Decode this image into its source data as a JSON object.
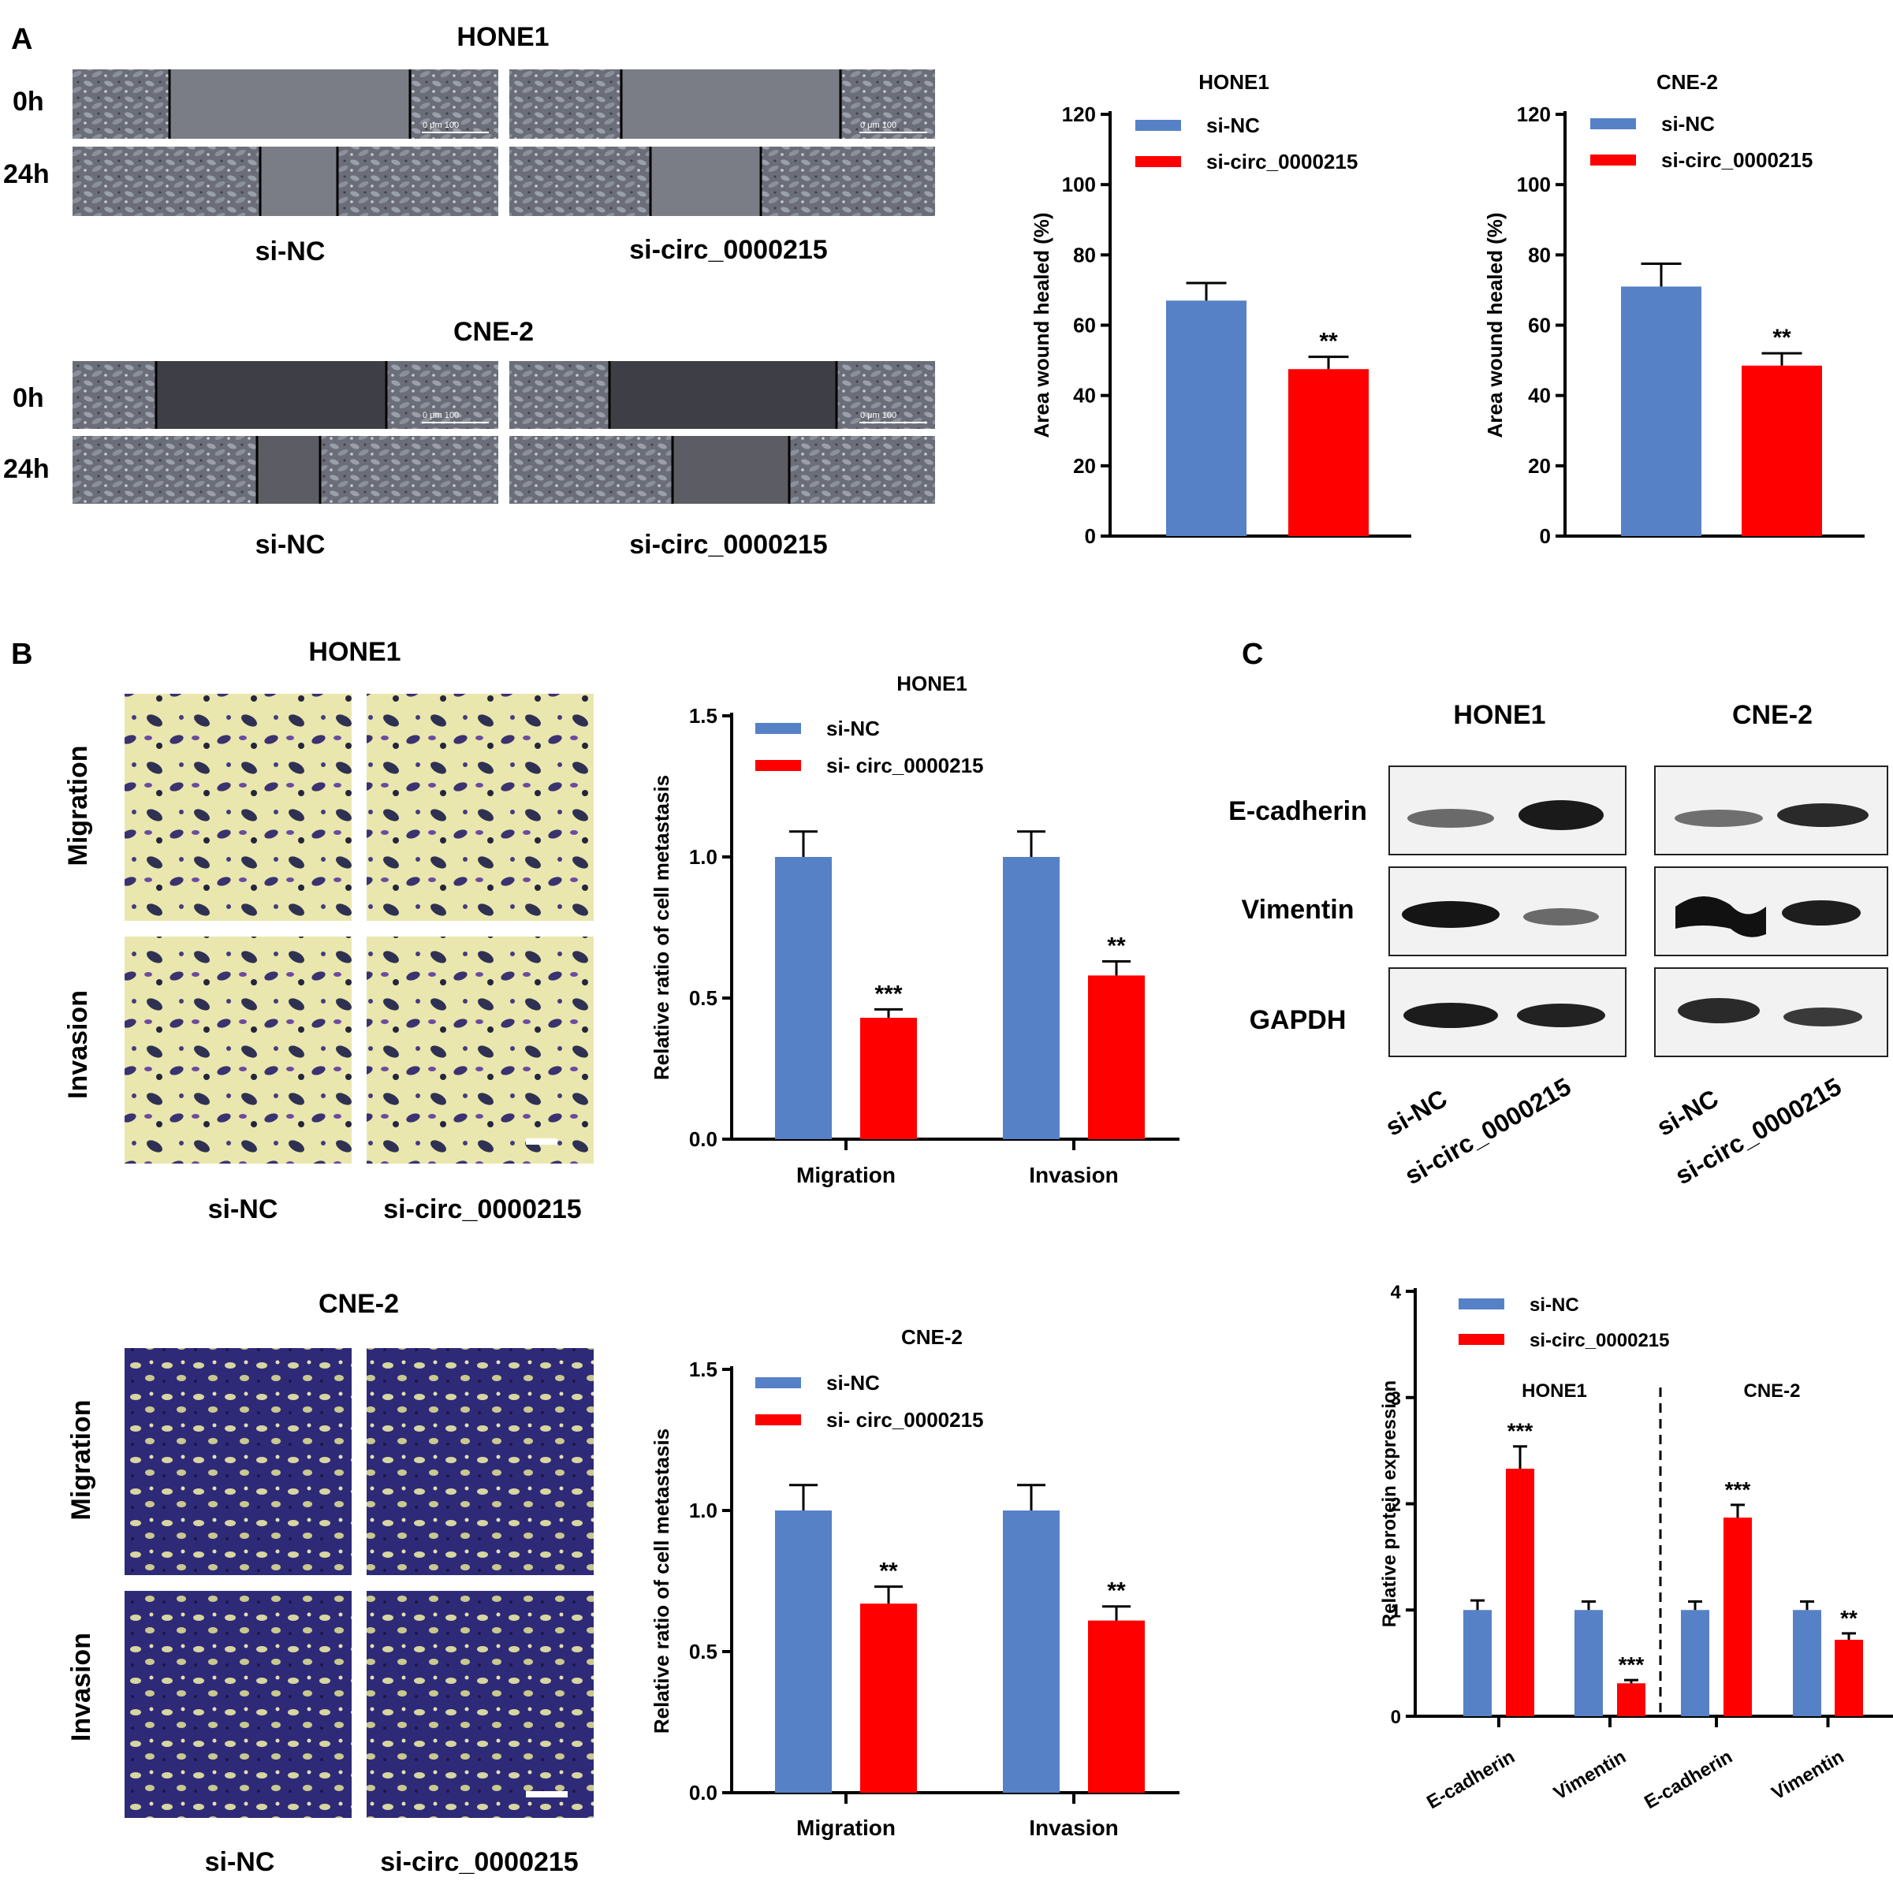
{
  "panel_labels": [
    "A",
    "B",
    "C"
  ],
  "panelA": {
    "hone1_title": "HONE1",
    "cne2_title": "CNE-2",
    "time_0h": "0h",
    "time_24h": "24h",
    "group_nc": "si-NC",
    "group_circ": "si-circ_0000215",
    "scale_label": "0  μm  100"
  },
  "panelB": {
    "hone1_title": "HONE1",
    "cne2_title": "CNE-2",
    "row_migration": "Migration",
    "row_invasion": "Invasion",
    "group_nc": "si-NC",
    "group_circ": "si-circ_0000215"
  },
  "panelC": {
    "hone1_title": "HONE1",
    "cne2_title": "CNE-2",
    "proteins": [
      "E-cadherin",
      "Vimentin",
      "GAPDH"
    ],
    "lane_nc": "si-NC",
    "lane_circ": "si-circ_0000215"
  },
  "colors": {
    "si_nc": "#5681C6",
    "si_circ": "#FF0000"
  },
  "chart_data": [
    {
      "type": "bar",
      "title": "HONE1",
      "ylabel": "Area wound healed (%)",
      "ylim": [
        0,
        120
      ],
      "yticks": [
        0,
        20,
        40,
        60,
        80,
        100,
        120
      ],
      "legend_placement": "top-left",
      "series": [
        {
          "name": "si-NC",
          "values": [
            67
          ],
          "errors": [
            5
          ],
          "sig": [
            ""
          ]
        },
        {
          "name": "si-circ_0000215",
          "values": [
            47.5
          ],
          "errors": [
            3.5
          ],
          "sig": [
            "**"
          ]
        }
      ]
    },
    {
      "type": "bar",
      "title": "CNE-2",
      "ylabel": "Area wound healed (%)",
      "ylim": [
        0,
        120
      ],
      "yticks": [
        0,
        20,
        40,
        60,
        80,
        100,
        120
      ],
      "legend_placement": "top-left",
      "series": [
        {
          "name": "si-NC",
          "values": [
            71
          ],
          "errors": [
            6.5
          ],
          "sig": [
            ""
          ]
        },
        {
          "name": "si-circ_0000215",
          "values": [
            48.5
          ],
          "errors": [
            3.5
          ],
          "sig": [
            "**"
          ]
        }
      ]
    },
    {
      "type": "bar",
      "title": "HONE1",
      "ylabel": "Relative ratio of cell metastasis",
      "ylim": [
        0,
        1.5
      ],
      "yticks": [
        "0.0",
        "0.5",
        "1.0",
        "1.5"
      ],
      "categories": [
        "Migration",
        "Invasion"
      ],
      "legend_placement": "top-left",
      "series": [
        {
          "name": "si-NC",
          "values": [
            1.0,
            1.0
          ],
          "errors": [
            0.09,
            0.09
          ],
          "sig": [
            "",
            ""
          ]
        },
        {
          "name": "si- circ_0000215",
          "values": [
            0.43,
            0.58
          ],
          "errors": [
            0.03,
            0.05
          ],
          "sig": [
            "***",
            "**"
          ]
        }
      ]
    },
    {
      "type": "bar",
      "title": "CNE-2",
      "ylabel": "Relative ratio of cell metastasis",
      "ylim": [
        0,
        1.5
      ],
      "yticks": [
        "0.0",
        "0.5",
        "1.0",
        "1.5"
      ],
      "categories": [
        "Migration",
        "Invasion"
      ],
      "legend_placement": "top-left",
      "series": [
        {
          "name": "si-NC",
          "values": [
            1.0,
            1.0
          ],
          "errors": [
            0.09,
            0.09
          ],
          "sig": [
            "",
            ""
          ]
        },
        {
          "name": "si- circ_0000215",
          "values": [
            0.67,
            0.61
          ],
          "errors": [
            0.06,
            0.05
          ],
          "sig": [
            "**",
            "**"
          ]
        }
      ]
    },
    {
      "type": "bar",
      "ylabel": "Relative protein expression",
      "ylim": [
        0,
        4
      ],
      "yticks": [
        0,
        1,
        2,
        3,
        4
      ],
      "groups": [
        "HONE1",
        "CNE-2"
      ],
      "categories": [
        "E-cadherin",
        "Vimentin",
        "E-cadherin",
        "Vimentin"
      ],
      "legend_placement": "top-left",
      "series": [
        {
          "name": "si-NC",
          "values": [
            1.0,
            1.0,
            1.0,
            1.0
          ],
          "errors": [
            0.09,
            0.08,
            0.08,
            0.08
          ],
          "sig": [
            "",
            "",
            "",
            ""
          ]
        },
        {
          "name": "si-circ_0000215",
          "values": [
            2.33,
            0.31,
            1.87,
            0.72
          ],
          "errors": [
            0.21,
            0.03,
            0.12,
            0.06
          ],
          "sig": [
            "***",
            "***",
            "***",
            "**"
          ]
        }
      ]
    }
  ]
}
